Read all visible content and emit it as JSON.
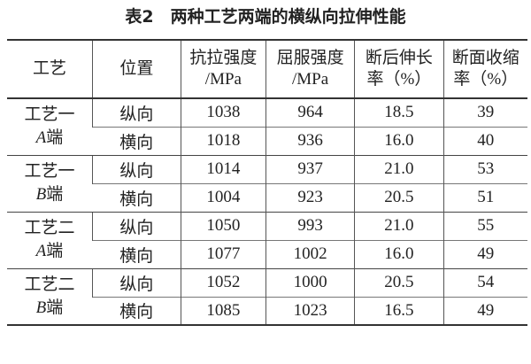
{
  "title": "表2　两种工艺两端的横纵向拉伸性能",
  "headers": [
    {
      "line1": "工艺",
      "line2": ""
    },
    {
      "line1": "位置",
      "line2": ""
    },
    {
      "line1": "抗拉强度",
      "line2": "/MPa"
    },
    {
      "line1": "屈服强度",
      "line2": "/MPa"
    },
    {
      "line1": "断后伸长",
      "line2": "率（%）"
    },
    {
      "line1": "断面收缩",
      "line2": "率（%）"
    }
  ],
  "groups": [
    {
      "process": "工艺一",
      "end": "A",
      "end_suffix": "端",
      "rows": [
        {
          "position": "纵向",
          "tensile": "1038",
          "yield": "964",
          "elongation": "18.5",
          "reduction": "39"
        },
        {
          "position": "横向",
          "tensile": "1018",
          "yield": "936",
          "elongation": "16.0",
          "reduction": "40"
        }
      ]
    },
    {
      "process": "工艺一",
      "end": "B",
      "end_suffix": "端",
      "rows": [
        {
          "position": "纵向",
          "tensile": "1014",
          "yield": "937",
          "elongation": "21.0",
          "reduction": "53"
        },
        {
          "position": "横向",
          "tensile": "1004",
          "yield": "923",
          "elongation": "20.5",
          "reduction": "51"
        }
      ]
    },
    {
      "process": "工艺二",
      "end": "A",
      "end_suffix": "端",
      "rows": [
        {
          "position": "纵向",
          "tensile": "1050",
          "yield": "993",
          "elongation": "21.0",
          "reduction": "55"
        },
        {
          "position": "横向",
          "tensile": "1077",
          "yield": "1002",
          "elongation": "16.0",
          "reduction": "49"
        }
      ]
    },
    {
      "process": "工艺二",
      "end": "B",
      "end_suffix": "端",
      "rows": [
        {
          "position": "纵向",
          "tensile": "1052",
          "yield": "1000",
          "elongation": "20.5",
          "reduction": "54"
        },
        {
          "position": "横向",
          "tensile": "1085",
          "yield": "1023",
          "elongation": "16.5",
          "reduction": "49"
        }
      ]
    }
  ]
}
